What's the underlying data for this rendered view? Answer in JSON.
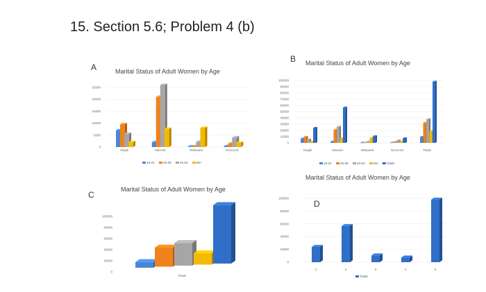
{
  "page": {
    "title": "15. Section 5.6; Problem 4 (b)",
    "panel_labels": [
      "A",
      "B",
      "C",
      "D"
    ]
  },
  "colors": {
    "18-24": "#4a86d6",
    "25-39": "#f0821c",
    "40-64": "#a6a6a6",
    "65+": "#f4b800",
    "Totals": "#2f6fc8"
  },
  "chart_data": [
    {
      "id": "A",
      "type": "bar",
      "title": "Marital Status of Adult Women by Age",
      "categories": [
        "Single",
        "Married",
        "Widowed",
        "Divorced"
      ],
      "series": [
        {
          "name": "18-24",
          "values": [
            7000,
            2000,
            200,
            300
          ]
        },
        {
          "name": "25-39",
          "values": [
            9500,
            21000,
            250,
            1400
          ]
        },
        {
          "name": "40-64",
          "values": [
            5500,
            26000,
            2200,
            4000
          ]
        },
        {
          "name": "65+",
          "values": [
            2000,
            7600,
            8000,
            1700
          ]
        }
      ],
      "yticks": [
        "25000",
        "20000",
        "15000",
        "10000",
        "5000",
        "0"
      ],
      "ylim": [
        0,
        25000
      ],
      "legend": [
        "18-24",
        "25-39",
        "40-64",
        "65+"
      ]
    },
    {
      "id": "B",
      "type": "bar",
      "title": "Marital Status of Adult Women by Age",
      "categories": [
        "Single",
        "Married",
        "Widowed",
        "Divorced",
        "Totals"
      ],
      "series": [
        {
          "name": "18-24",
          "values": [
            7000,
            2000,
            200,
            300,
            9500
          ]
        },
        {
          "name": "25-39",
          "values": [
            9500,
            21000,
            250,
            1400,
            32000
          ]
        },
        {
          "name": "40-64",
          "values": [
            5500,
            26000,
            2200,
            4000,
            38000
          ]
        },
        {
          "name": "65+",
          "values": [
            2000,
            7600,
            8000,
            1700,
            19000
          ]
        },
        {
          "name": "Totals",
          "values": [
            24000,
            56600,
            10650,
            7400,
            98000
          ]
        }
      ],
      "yticks": [
        "100000",
        "90000",
        "80000",
        "70000",
        "60000",
        "50000",
        "40000",
        "30000",
        "20000",
        "10000",
        "0"
      ],
      "ylim": [
        0,
        100000
      ],
      "legend": [
        "18-24",
        "25-39",
        "40-64",
        "65+",
        "Totals"
      ]
    },
    {
      "id": "C",
      "type": "bar",
      "title": "Marital Status of Adult Women by Age",
      "categories": [
        "Totals"
      ],
      "series": [
        {
          "name": "18-24",
          "values": [
            9500
          ]
        },
        {
          "name": "25-39",
          "values": [
            32000
          ]
        },
        {
          "name": "40-64",
          "values": [
            38000
          ]
        },
        {
          "name": "65+",
          "values": [
            19000
          ]
        },
        {
          "name": "Totals",
          "values": [
            98000
          ]
        }
      ],
      "yticks": [
        "100000",
        "80000",
        "60000",
        "40000",
        "20000",
        "0"
      ],
      "ylim": [
        0,
        100000
      ]
    },
    {
      "id": "D",
      "type": "bar",
      "title": "",
      "categories": [
        "1",
        "2",
        "3",
        "4",
        "5"
      ],
      "series": [
        {
          "name": "Totals",
          "values": [
            24000,
            56600,
            10650,
            7400,
            98000
          ]
        }
      ],
      "yticks": [
        "100000",
        "80000",
        "60000",
        "40000",
        "20000",
        "0"
      ],
      "ylim": [
        0,
        100000
      ],
      "legend": [
        "Totals"
      ]
    }
  ]
}
